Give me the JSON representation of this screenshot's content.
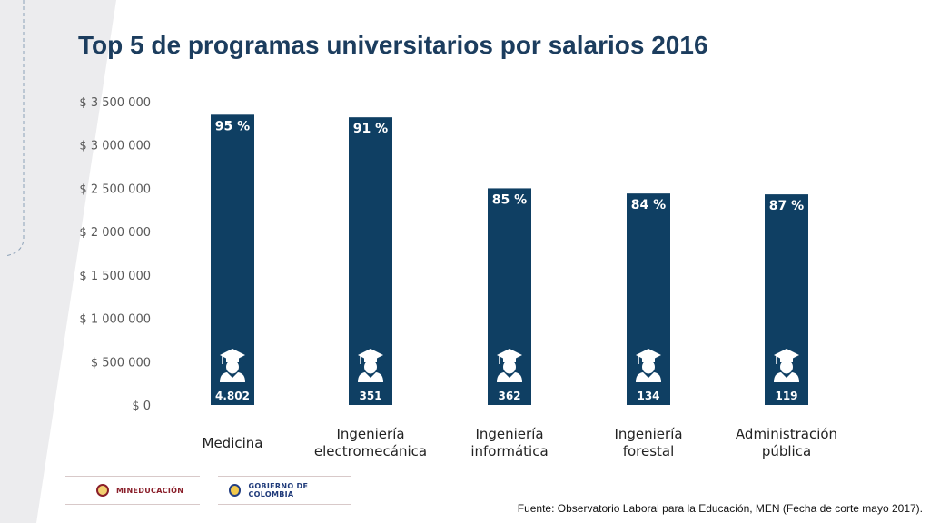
{
  "title": "Top 5 de programas universitarios por salarios 2016",
  "colors": {
    "bar": "#0f3f63",
    "title": "#1c3d5e",
    "axis_text": "#595959",
    "bg_shape": "#ececee"
  },
  "icon": "graduate-icon",
  "chart_data": {
    "type": "bar",
    "categories": [
      [
        "Medicina"
      ],
      [
        "Ingeniería",
        "electromecánica"
      ],
      [
        "Ingeniería",
        "informática"
      ],
      [
        "Ingeniería",
        "forestal"
      ],
      [
        "Administración",
        "pública"
      ]
    ],
    "values": [
      3350000,
      3320000,
      2500000,
      2440000,
      2430000
    ],
    "bar_top_labels": [
      "95 %",
      "91 %",
      "85 %",
      "84 %",
      "87 %"
    ],
    "bar_bottom_labels": [
      "4.802",
      "351",
      "362",
      "134",
      "119"
    ],
    "ylim": [
      0,
      3500000
    ],
    "yticks": [
      0,
      500000,
      1000000,
      1500000,
      2000000,
      2500000,
      3000000,
      3500000
    ],
    "ytick_labels": [
      "$ 0",
      "$ 500 000",
      "$ 1 000 000",
      "$ 1 500 000",
      "$ 2 000 000",
      "$ 2 500 000",
      "$ 3 000 000",
      "$ 3 500 000"
    ],
    "grid": false
  },
  "footer": {
    "logo_left": "MINEDUCACIÓN",
    "logo_right": "GOBIERNO DE COLOMBIA",
    "source_prefix": "Fuente:",
    "source_bold": "Observatorio Laboral para la Educación",
    "source_suffix": ", MEN (Fecha de corte mayo 2017)."
  }
}
